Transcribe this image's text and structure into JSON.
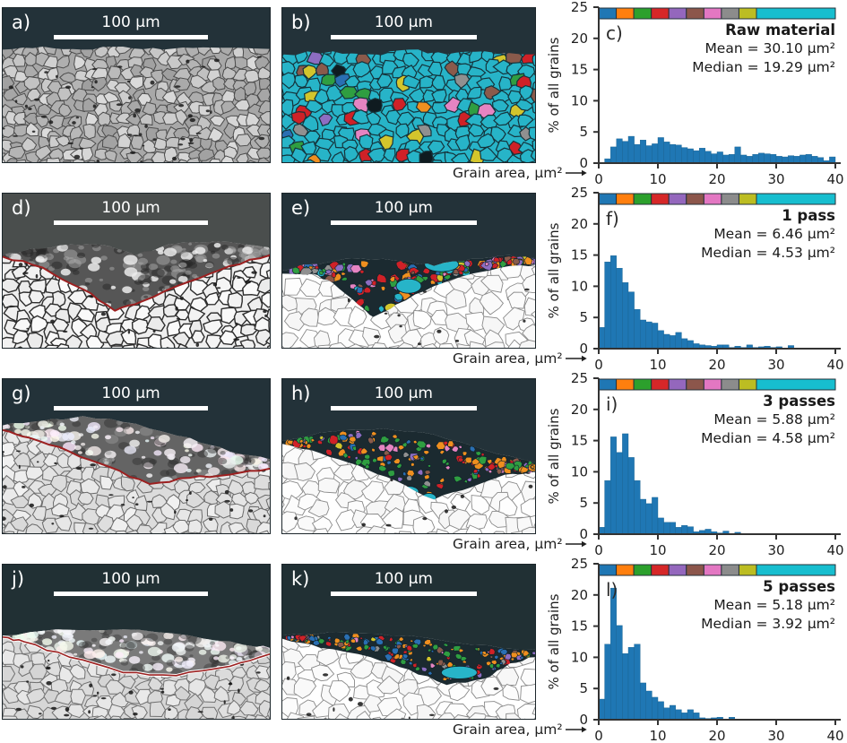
{
  "axis": {
    "xlabel": "Grain area, μm²",
    "ylabel": "% of all grains",
    "xticks": [
      0,
      10,
      20,
      30,
      40
    ],
    "yticks": [
      0,
      5,
      10,
      15,
      20,
      25
    ],
    "xlim": [
      0,
      40
    ],
    "ylim": [
      0,
      25
    ]
  },
  "colorband": {
    "colors": [
      "#1f77b4",
      "#ff7f0e",
      "#2ca02c",
      "#d62728",
      "#9467bd",
      "#8c564b",
      "#e377c2",
      "#8c8c8c",
      "#bcbd22",
      "#17becf"
    ],
    "last_segment_ratio": 4.5
  },
  "map_palette": {
    "cyan": "#27b4c8",
    "red": "#cf2127",
    "green": "#2f9e41",
    "orange": "#ef8f1f",
    "yellow": "#d3c52c",
    "purple": "#8d6dc2",
    "pink": "#e584c2",
    "brown": "#8a5a4b",
    "blue": "#2a6fb3",
    "gray": "#909090",
    "dark_teal_bg": "#233239",
    "boundary_red": "#9c2020",
    "hist_bar": "#1f77b4"
  },
  "micro_panels": [
    {
      "id": "a",
      "letter": "a)",
      "scale_label": "100 μm"
    },
    {
      "id": "b",
      "letter": "b)",
      "scale_label": "100 μm"
    },
    {
      "id": "d",
      "letter": "d)",
      "scale_label": "100 μm"
    },
    {
      "id": "e",
      "letter": "e)",
      "scale_label": "100 μm"
    },
    {
      "id": "g",
      "letter": "g)",
      "scale_label": "100 μm"
    },
    {
      "id": "h",
      "letter": "h)",
      "scale_label": "100 μm"
    },
    {
      "id": "j",
      "letter": "j)",
      "scale_label": "100 μm"
    },
    {
      "id": "k",
      "letter": "k)",
      "scale_label": "100 μm"
    }
  ],
  "histogram_panels": [
    {
      "letter": "c)",
      "title": "Raw material",
      "mean": "Mean = 30.10 μm²",
      "median": "Median = 19.29 μm²"
    },
    {
      "letter": "f)",
      "title": "1 pass",
      "mean": "Mean = 6.46 μm²",
      "median": "Median = 4.53 μm²"
    },
    {
      "letter": "i)",
      "title": "3 passes",
      "mean": "Mean = 5.88 μm²",
      "median": "Median = 4.58 μm²"
    },
    {
      "letter": "l)",
      "title": "5 passes",
      "mean": "Mean = 5.18 μm²",
      "median": "Median = 3.92 μm²"
    }
  ],
  "chart_data": [
    {
      "type": "bar",
      "subtype": "histogram",
      "title": "Raw material",
      "xlabel": "Grain area, μm²",
      "ylabel": "% of all grains",
      "xlim": [
        0,
        40
      ],
      "ylim": [
        0,
        25
      ],
      "bin_width": 1,
      "x_start": 0,
      "bar_color": "#1f77b4",
      "mean_um2": 30.1,
      "median_um2": 19.29,
      "values": [
        0,
        0.7,
        2.6,
        3.9,
        3.5,
        4.3,
        3.0,
        3.7,
        2.8,
        3.1,
        4.1,
        3.4,
        3.0,
        2.9,
        2.5,
        2.3,
        2.0,
        2.4,
        1.9,
        1.5,
        1.8,
        1.3,
        1.4,
        2.6,
        1.3,
        1.1,
        1.4,
        1.6,
        1.5,
        1.4,
        1.1,
        1.0,
        1.2,
        1.1,
        1.3,
        1.4,
        1.1,
        0.9,
        0.4,
        1.0
      ]
    },
    {
      "type": "bar",
      "subtype": "histogram",
      "title": "1 pass",
      "xlabel": "Grain area, μm²",
      "ylabel": "% of all grains",
      "xlim": [
        0,
        40
      ],
      "ylim": [
        0,
        25
      ],
      "bin_width": 1,
      "x_start": 0,
      "bar_color": "#1f77b4",
      "mean_um2": 6.46,
      "median_um2": 4.53,
      "values": [
        3.4,
        13.9,
        14.9,
        12.9,
        10.6,
        9.1,
        6.3,
        4.6,
        4.3,
        4.1,
        2.9,
        2.3,
        2.1,
        2.6,
        1.6,
        1.3,
        0.8,
        0.6,
        0.5,
        0.4,
        0.6,
        0.6,
        0.2,
        0.4,
        0.2,
        0.6,
        0.2,
        0.3,
        0.4,
        0.2,
        0.3,
        0.1,
        0.5,
        0.1,
        0,
        0,
        0,
        0,
        0,
        0
      ]
    },
    {
      "type": "bar",
      "subtype": "histogram",
      "title": "3 passes",
      "xlabel": "Grain area, μm²",
      "ylabel": "% of all grains",
      "xlim": [
        0,
        40
      ],
      "ylim": [
        0,
        25
      ],
      "bin_width": 1,
      "x_start": 0,
      "bar_color": "#1f77b4",
      "mean_um2": 5.88,
      "median_um2": 4.58,
      "values": [
        1.1,
        8.6,
        15.6,
        13.1,
        16.1,
        12.3,
        8.6,
        5.6,
        4.9,
        5.9,
        2.6,
        1.9,
        1.9,
        1.1,
        1.4,
        1.2,
        0.4,
        0.6,
        0.8,
        0.4,
        0.2,
        0.5,
        0.1,
        0.3,
        0,
        0,
        0,
        0,
        0,
        0,
        0,
        0,
        0,
        0,
        0,
        0,
        0,
        0,
        0,
        0
      ]
    },
    {
      "type": "bar",
      "subtype": "histogram",
      "title": "5 passes",
      "xlabel": "Grain area, μm²",
      "ylabel": "% of all grains",
      "xlim": [
        0,
        40
      ],
      "ylim": [
        0,
        25
      ],
      "bin_width": 1,
      "x_start": 0,
      "bar_color": "#1f77b4",
      "mean_um2": 5.18,
      "median_um2": 3.92,
      "values": [
        3.3,
        12.1,
        21.1,
        15.1,
        10.6,
        11.6,
        12.1,
        5.9,
        4.6,
        3.6,
        2.9,
        1.9,
        2.3,
        1.6,
        1.1,
        1.6,
        1.1,
        0.3,
        0.2,
        0.3,
        0.4,
        0.1,
        0.4,
        0,
        0,
        0,
        0,
        0,
        0,
        0,
        0,
        0,
        0,
        0,
        0,
        0,
        0,
        0,
        0,
        0
      ]
    }
  ]
}
